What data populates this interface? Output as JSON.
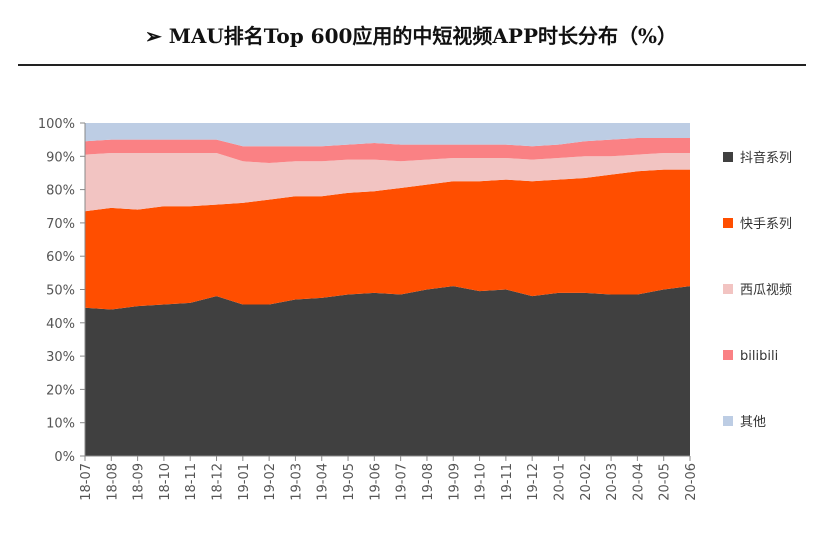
{
  "title": "➢ MAU排名Top 600应用的中短视频APP时长分布（%）",
  "chart_data": {
    "type": "area",
    "stacked": true,
    "categories": [
      "18-07",
      "18-08",
      "18-09",
      "18-10",
      "18-11",
      "18-12",
      "19-01",
      "19-02",
      "19-03",
      "19-04",
      "19-05",
      "19-06",
      "19-07",
      "19-08",
      "19-09",
      "19-10",
      "19-11",
      "19-12",
      "20-01",
      "20-02",
      "20-03",
      "20-04",
      "20-05",
      "20-06"
    ],
    "ylim": [
      0,
      100
    ],
    "yticks": [
      "0%",
      "10%",
      "20%",
      "30%",
      "40%",
      "50%",
      "60%",
      "70%",
      "80%",
      "90%",
      "100%"
    ],
    "legend_position": "right",
    "series": [
      {
        "name": "抖音系列",
        "color": "#404040",
        "values": [
          44.5,
          44,
          45,
          45.5,
          46,
          48,
          45.5,
          45.5,
          47,
          47.5,
          48.5,
          49,
          48.5,
          50,
          51,
          49.5,
          50,
          48,
          49,
          49,
          48.5,
          48.5,
          50,
          51
        ]
      },
      {
        "name": "快手系列",
        "color": "#ff4e00",
        "values": [
          29,
          30.5,
          29,
          29.5,
          29,
          27.5,
          30.5,
          31.5,
          31,
          30.5,
          30.5,
          30.5,
          32,
          31.5,
          31.5,
          33,
          33,
          34.5,
          34,
          34.5,
          36,
          37,
          36,
          35
        ]
      },
      {
        "name": "西瓜视频",
        "color": "#f2c4c2",
        "values": [
          17,
          16.5,
          17,
          16,
          16,
          15.5,
          12.5,
          11,
          10.5,
          10.5,
          10,
          9.5,
          8,
          7.5,
          7,
          7,
          6.5,
          6.5,
          6.5,
          6.5,
          5.5,
          5,
          5,
          5
        ]
      },
      {
        "name": "bilibili",
        "color": "#fa8184",
        "values": [
          4,
          4,
          4,
          4,
          4,
          4,
          4.5,
          5,
          4.5,
          4.5,
          4.5,
          5,
          5,
          4.5,
          4,
          4,
          4,
          4,
          4,
          4.5,
          5,
          5,
          4.5,
          4.5
        ]
      },
      {
        "name": "其他",
        "color": "#bdcde4",
        "values": [
          5.5,
          5,
          5,
          5,
          5,
          5,
          7,
          7,
          7,
          7,
          6.5,
          6,
          6.5,
          6.5,
          6.5,
          6.5,
          6.5,
          7,
          6.5,
          5.5,
          5,
          4.5,
          4.5,
          4.5
        ]
      }
    ]
  }
}
